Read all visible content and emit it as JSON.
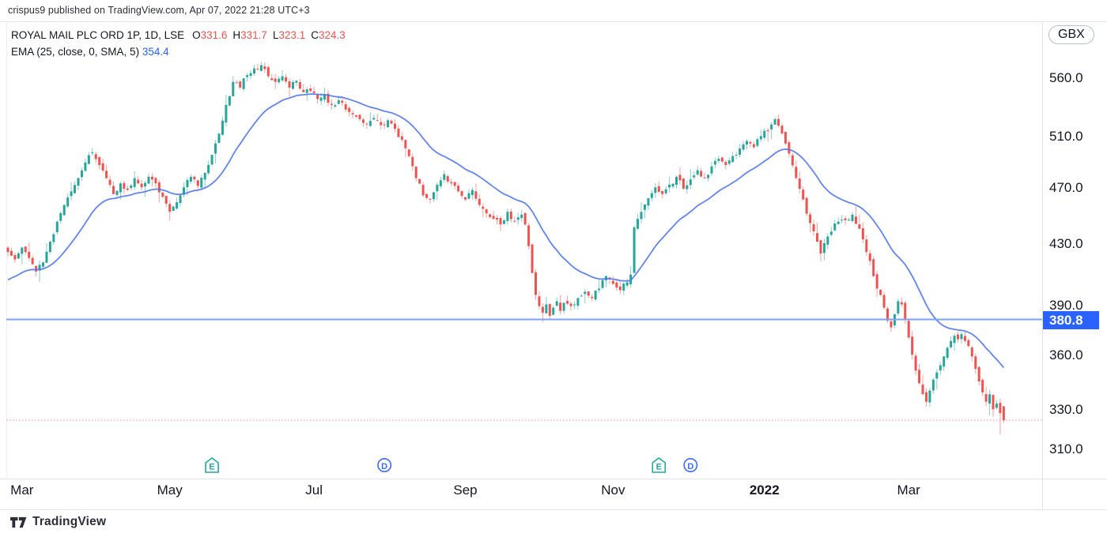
{
  "attribution": "crispus9 published on TradingView.com, Apr 07, 2022 21:28 UTC+3",
  "legend": {
    "symbol_title": "ROYAL MAIL PLC ORD 1P, 1D, LSE",
    "ohlc": [
      {
        "label": "O",
        "value": "331.6"
      },
      {
        "label": "H",
        "value": "331.7"
      },
      {
        "label": "L",
        "value": "323.1"
      },
      {
        "label": "C",
        "value": "324.3"
      }
    ],
    "indicator_name": "EMA (25, close, 0, SMA, 5)",
    "indicator_value": "354.4"
  },
  "price_axis": {
    "currency_button": "GBX",
    "ticks": [
      560.0,
      510.0,
      470.0,
      430.0,
      390.0,
      360.0,
      330.0,
      310.0
    ],
    "active_price_label": "380.8"
  },
  "time_axis": {
    "ticks": [
      {
        "label": "Mar",
        "day": 4,
        "bold": false
      },
      {
        "label": "May",
        "day": 46,
        "bold": false
      },
      {
        "label": "Jul",
        "day": 87,
        "bold": false
      },
      {
        "label": "Sep",
        "day": 130,
        "bold": false
      },
      {
        "label": "Nov",
        "day": 172,
        "bold": false
      },
      {
        "label": "2022",
        "day": 215,
        "bold": true
      },
      {
        "label": "Mar",
        "day": 256,
        "bold": false
      }
    ]
  },
  "footer": {
    "logo_text": "TradingView"
  },
  "colors": {
    "up": "#26a69a",
    "down": "#ef5350",
    "ema_line": "#5277f2",
    "horizontal_line": "#7da1f8",
    "price_label_bg": "#2962ff",
    "close_dotted_line": "#f58a8d",
    "event_earnings": "#26a69a",
    "event_dividend": "#3d6bf5",
    "text": "#131722"
  },
  "chart_data": {
    "type": "candlestick",
    "symbol": "ROYAL MAIL PLC ORD 1P",
    "interval": "1D",
    "exchange": "LSE",
    "currency": "GBX",
    "y_scale": "log",
    "y_ticks": [
      560.0,
      510.0,
      470.0,
      430.0,
      390.0,
      360.0,
      330.0,
      310.0
    ],
    "y_range_approx": [
      305,
      585
    ],
    "grid": false,
    "last_ohlc": {
      "open": 331.6,
      "high": 331.7,
      "low": 323.1,
      "close": 324.3
    },
    "indicator": {
      "name": "EMA",
      "period": 25,
      "source": "close",
      "offset": 0,
      "smoothing": "SMA",
      "smoothing_length": 5,
      "last_value": 354.4
    },
    "horizontal_line_price": 380.8,
    "last_close_line_price": 324.3,
    "num_days": 284,
    "close_anchors": [
      [
        0,
        424
      ],
      [
        2,
        419
      ],
      [
        4,
        427
      ],
      [
        6,
        420
      ],
      [
        8,
        411
      ],
      [
        10,
        417
      ],
      [
        12,
        431
      ],
      [
        14,
        445
      ],
      [
        16,
        457
      ],
      [
        18,
        467
      ],
      [
        20,
        477
      ],
      [
        22,
        489
      ],
      [
        24,
        497
      ],
      [
        26,
        487
      ],
      [
        28,
        477
      ],
      [
        30,
        465
      ],
      [
        32,
        473
      ],
      [
        34,
        468
      ],
      [
        36,
        477
      ],
      [
        38,
        470
      ],
      [
        40,
        478
      ],
      [
        42,
        473
      ],
      [
        44,
        463
      ],
      [
        46,
        452
      ],
      [
        48,
        459
      ],
      [
        50,
        470
      ],
      [
        52,
        478
      ],
      [
        54,
        471
      ],
      [
        56,
        481
      ],
      [
        58,
        495
      ],
      [
        60,
        512
      ],
      [
        62,
        536
      ],
      [
        64,
        556
      ],
      [
        66,
        551
      ],
      [
        68,
        562
      ],
      [
        70,
        568
      ],
      [
        72,
        571
      ],
      [
        74,
        561
      ],
      [
        76,
        556
      ],
      [
        78,
        561
      ],
      [
        80,
        551
      ],
      [
        82,
        557
      ],
      [
        84,
        547
      ],
      [
        86,
        548
      ],
      [
        88,
        541
      ],
      [
        90,
        545
      ],
      [
        92,
        536
      ],
      [
        94,
        540
      ],
      [
        96,
        532
      ],
      [
        98,
        528
      ],
      [
        100,
        524
      ],
      [
        102,
        520
      ],
      [
        104,
        525
      ],
      [
        106,
        519
      ],
      [
        108,
        523
      ],
      [
        110,
        516
      ],
      [
        112,
        507
      ],
      [
        114,
        494
      ],
      [
        116,
        477
      ],
      [
        118,
        464
      ],
      [
        120,
        461
      ],
      [
        122,
        472
      ],
      [
        124,
        480
      ],
      [
        126,
        473
      ],
      [
        128,
        467
      ],
      [
        130,
        461
      ],
      [
        132,
        468
      ],
      [
        134,
        457
      ],
      [
        136,
        451
      ],
      [
        138,
        447
      ],
      [
        140,
        443
      ],
      [
        142,
        452
      ],
      [
        144,
        445
      ],
      [
        146,
        450
      ],
      [
        147,
        443
      ],
      [
        148,
        428
      ],
      [
        149,
        410
      ],
      [
        150,
        396
      ],
      [
        151,
        389
      ],
      [
        152,
        385
      ],
      [
        153,
        390
      ],
      [
        154,
        383
      ],
      [
        155,
        388
      ],
      [
        156,
        392
      ],
      [
        157,
        386
      ],
      [
        158,
        391
      ],
      [
        160,
        389
      ],
      [
        162,
        394
      ],
      [
        164,
        398
      ],
      [
        166,
        394
      ],
      [
        168,
        400
      ],
      [
        170,
        408
      ],
      [
        172,
        403
      ],
      [
        174,
        399
      ],
      [
        176,
        404
      ],
      [
        177,
        409
      ],
      [
        178,
        441
      ],
      [
        179,
        447
      ],
      [
        180,
        452
      ],
      [
        182,
        462
      ],
      [
        184,
        470
      ],
      [
        186,
        465
      ],
      [
        188,
        472
      ],
      [
        190,
        478
      ],
      [
        192,
        469
      ],
      [
        194,
        476
      ],
      [
        196,
        483
      ],
      [
        198,
        477
      ],
      [
        200,
        486
      ],
      [
        202,
        492
      ],
      [
        204,
        487
      ],
      [
        206,
        494
      ],
      [
        208,
        500
      ],
      [
        210,
        506
      ],
      [
        212,
        501
      ],
      [
        214,
        510
      ],
      [
        216,
        514
      ],
      [
        218,
        524
      ],
      [
        220,
        512
      ],
      [
        221,
        504
      ],
      [
        222,
        496
      ],
      [
        224,
        477
      ],
      [
        226,
        461
      ],
      [
        228,
        444
      ],
      [
        230,
        431
      ],
      [
        231,
        423
      ],
      [
        232,
        430
      ],
      [
        234,
        438
      ],
      [
        236,
        445
      ],
      [
        238,
        446
      ],
      [
        240,
        450
      ],
      [
        242,
        440
      ],
      [
        244,
        424
      ],
      [
        246,
        408
      ],
      [
        247,
        400
      ],
      [
        248,
        396
      ],
      [
        249,
        388
      ],
      [
        250,
        380
      ],
      [
        251,
        376
      ],
      [
        252,
        384
      ],
      [
        253,
        392
      ],
      [
        254,
        390
      ],
      [
        255,
        381
      ],
      [
        256,
        370
      ],
      [
        257,
        360
      ],
      [
        258,
        351
      ],
      [
        259,
        344
      ],
      [
        260,
        338
      ],
      [
        261,
        334
      ],
      [
        262,
        340
      ],
      [
        263,
        346
      ],
      [
        264,
        350
      ],
      [
        265,
        354
      ],
      [
        266,
        359
      ],
      [
        267,
        364
      ],
      [
        268,
        368
      ],
      [
        269,
        371
      ],
      [
        270,
        369
      ],
      [
        271,
        372
      ],
      [
        272,
        368
      ],
      [
        273,
        365
      ],
      [
        274,
        359
      ],
      [
        275,
        352
      ],
      [
        276,
        345
      ],
      [
        277,
        339
      ],
      [
        278,
        334
      ],
      [
        279,
        338
      ],
      [
        280,
        330
      ],
      [
        281,
        333
      ],
      [
        282,
        328
      ],
      [
        283,
        324.3
      ]
    ],
    "events": [
      {
        "type": "E",
        "day": 58
      },
      {
        "type": "D",
        "day": 107
      },
      {
        "type": "E",
        "day": 185
      },
      {
        "type": "D",
        "day": 194
      }
    ]
  }
}
